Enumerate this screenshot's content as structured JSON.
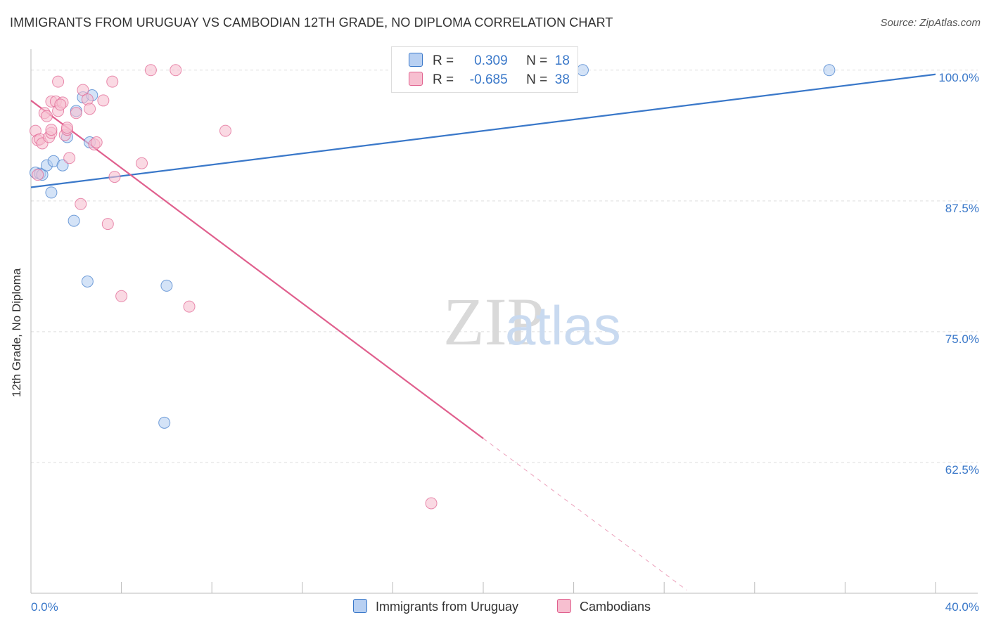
{
  "header": {
    "title": "IMMIGRANTS FROM URUGUAY VS CAMBODIAN 12TH GRADE, NO DIPLOMA CORRELATION CHART",
    "source": "Source: ZipAtlas.com"
  },
  "watermark": {
    "zip": "ZIP",
    "atlas": "atlas"
  },
  "colors": {
    "blue": "#3a78c9",
    "blue_fill": "#b8d0f2",
    "pink": "#e0608e",
    "pink_fill": "#f7bfd0",
    "grid": "#dddddd",
    "tick_label": "#3a78c9"
  },
  "legend": {
    "rows": [
      {
        "r_label": "R =",
        "r_value": "0.309",
        "n_label": "N =",
        "n_value": "18"
      },
      {
        "r_label": "R =",
        "r_value": "-0.685",
        "n_label": "N =",
        "n_value": "38"
      }
    ]
  },
  "bottom_legend": {
    "series1": "Immigrants from Uruguay",
    "series2": "Cambodians"
  },
  "chart_data": {
    "type": "scatter",
    "title": "IMMIGRANTS FROM URUGUAY VS CAMBODIAN 12TH GRADE, NO DIPLOMA CORRELATION CHART",
    "xlabel": "",
    "ylabel": "12th Grade, No Diploma",
    "xlim": [
      0,
      40
    ],
    "ylim": [
      50,
      102
    ],
    "x_tick_labels": [
      "0.0%",
      "40.0%"
    ],
    "y_ticks": [
      62.5,
      75.0,
      87.5,
      100.0
    ],
    "y_tick_labels": [
      "62.5%",
      "75.0%",
      "87.5%",
      "100.0%"
    ],
    "series": [
      {
        "name": "Immigrants from Uruguay",
        "r": 0.309,
        "n": 18,
        "points": [
          [
            0.2,
            90.2
          ],
          [
            0.4,
            90.1
          ],
          [
            0.5,
            90.0
          ],
          [
            0.9,
            88.3
          ],
          [
            0.7,
            90.9
          ],
          [
            1.0,
            91.3
          ],
          [
            1.4,
            90.9
          ],
          [
            1.6,
            93.6
          ],
          [
            1.9,
            85.6
          ],
          [
            2.0,
            96.1
          ],
          [
            2.3,
            97.4
          ],
          [
            2.7,
            97.6
          ],
          [
            2.6,
            93.1
          ],
          [
            2.5,
            79.8
          ],
          [
            6.0,
            79.4
          ],
          [
            5.9,
            66.3
          ],
          [
            24.4,
            100.0
          ],
          [
            35.3,
            100.0
          ]
        ],
        "trend": {
          "x": [
            0,
            40
          ],
          "y": [
            88.8,
            99.6
          ]
        }
      },
      {
        "name": "Cambodians",
        "r": -0.685,
        "n": 38,
        "points": [
          [
            0.2,
            94.2
          ],
          [
            0.3,
            93.3
          ],
          [
            0.4,
            93.4
          ],
          [
            0.5,
            93.0
          ],
          [
            0.6,
            95.9
          ],
          [
            0.7,
            95.6
          ],
          [
            0.8,
            93.6
          ],
          [
            0.9,
            94.0
          ],
          [
            0.9,
            94.3
          ],
          [
            0.9,
            97.0
          ],
          [
            1.1,
            97.0
          ],
          [
            1.2,
            96.1
          ],
          [
            1.2,
            98.9
          ],
          [
            1.4,
            96.9
          ],
          [
            1.5,
            93.8
          ],
          [
            1.6,
            94.3
          ],
          [
            1.6,
            94.5
          ],
          [
            1.7,
            91.6
          ],
          [
            2.0,
            95.9
          ],
          [
            2.3,
            98.1
          ],
          [
            2.5,
            97.2
          ],
          [
            2.8,
            92.9
          ],
          [
            2.9,
            93.1
          ],
          [
            3.2,
            97.1
          ],
          [
            3.4,
            85.3
          ],
          [
            3.6,
            98.9
          ],
          [
            3.7,
            89.8
          ],
          [
            4.0,
            78.4
          ],
          [
            4.9,
            91.1
          ],
          [
            5.3,
            100.0
          ],
          [
            6.4,
            100.0
          ],
          [
            7.0,
            77.4
          ],
          [
            8.6,
            94.2
          ],
          [
            2.2,
            87.2
          ],
          [
            17.7,
            58.6
          ],
          [
            0.3,
            90.0
          ],
          [
            1.3,
            96.7
          ],
          [
            2.6,
            96.3
          ]
        ],
        "trend": {
          "x": [
            0,
            20
          ],
          "y": [
            97.1,
            64.8
          ]
        },
        "trend_dashed": {
          "x": [
            20,
            29
          ],
          "y": [
            64.8,
            50.3
          ]
        }
      }
    ]
  }
}
